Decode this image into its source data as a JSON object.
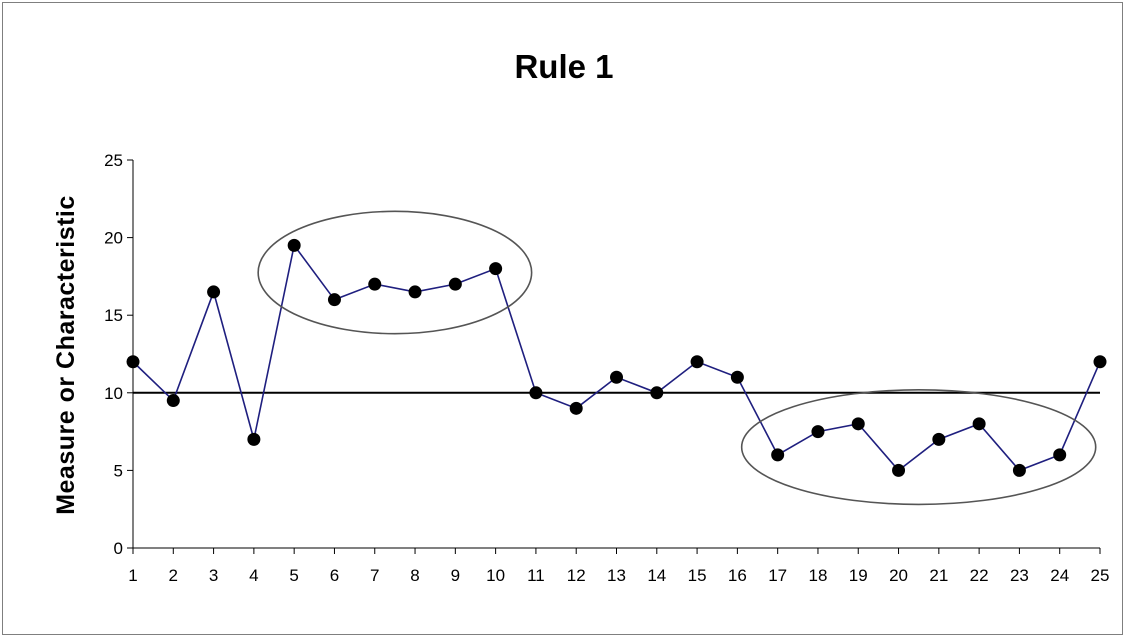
{
  "chart_data": {
    "type": "line",
    "title": "Rule 1",
    "xlabel": "",
    "ylabel": "Measure or Characteristic",
    "x": [
      1,
      2,
      3,
      4,
      5,
      6,
      7,
      8,
      9,
      10,
      11,
      12,
      13,
      14,
      15,
      16,
      17,
      18,
      19,
      20,
      21,
      22,
      23,
      24,
      25
    ],
    "xticks": [
      "1",
      "2",
      "3",
      "4",
      "5",
      "6",
      "7",
      "8",
      "9",
      "10",
      "11",
      "12",
      "13",
      "14",
      "15",
      "16",
      "17",
      "18",
      "19",
      "20",
      "21",
      "22",
      "23",
      "24",
      "25"
    ],
    "yticks": [
      "0",
      "5",
      "10",
      "15",
      "20",
      "25"
    ],
    "ylim": [
      0,
      25
    ],
    "series": [
      {
        "values": [
          12,
          9.5,
          16.5,
          7,
          19.5,
          16,
          17,
          16.5,
          17,
          18,
          10,
          9,
          11,
          10,
          12,
          11,
          6,
          7.5,
          8,
          5,
          7,
          8,
          5,
          6,
          12
        ],
        "color": "#1f1f7f",
        "marker_color": "#000000"
      }
    ],
    "reference_line": {
      "y": 10,
      "color": "#000000"
    },
    "highlight_ellipses": [
      {
        "x_range": [
          5,
          10
        ],
        "y_range": [
          16,
          19.5
        ]
      },
      {
        "x_range": [
          17,
          24
        ],
        "y_range": [
          5,
          8
        ]
      }
    ],
    "grid": false,
    "legend": "none"
  }
}
